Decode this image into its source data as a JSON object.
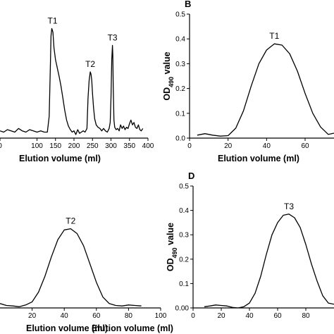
{
  "chart_data": [
    {
      "panel": "",
      "type": "line",
      "xlabel": "Elution volume (ml)",
      "ylabel": "",
      "xlim": [
        0,
        400
      ],
      "ylim": [
        -0.03,
        1.0
      ],
      "xticks": [
        0,
        100,
        150,
        200,
        250,
        300,
        350,
        400
      ],
      "xtick_labels": [
        "0",
        "100",
        "150",
        "200",
        "250",
        "300",
        "350",
        "400"
      ],
      "yticks": [],
      "series": [
        {
          "name": "",
          "x": [
            0,
            10,
            20,
            30,
            40,
            50,
            60,
            70,
            80,
            90,
            100,
            110,
            120,
            128,
            133,
            136,
            138,
            140,
            143,
            146,
            150,
            155,
            160,
            165,
            170,
            175,
            180,
            185,
            190,
            195,
            200,
            205,
            210,
            215,
            220,
            225,
            230,
            235,
            238,
            241,
            244,
            246,
            248,
            250,
            253,
            256,
            260,
            265,
            270,
            275,
            280,
            285,
            290,
            295,
            298,
            300,
            302,
            304,
            305,
            306,
            308,
            310,
            314,
            318,
            322,
            326,
            330,
            334,
            338,
            342,
            346,
            350,
            354,
            358,
            362,
            366,
            370,
            374,
            378,
            382,
            386
          ],
          "y": [
            0.03,
            0.02,
            0.04,
            0.03,
            0.02,
            0.05,
            0.03,
            0.02,
            0.04,
            0.03,
            0.02,
            0.03,
            0.02,
            0.02,
            0.15,
            0.55,
            0.82,
            0.88,
            0.85,
            0.72,
            0.62,
            0.55,
            0.48,
            0.4,
            0.3,
            0.2,
            0.12,
            0.07,
            0.04,
            0.02,
            0.03,
            0.0,
            0.04,
            0.01,
            0.02,
            0.03,
            0.02,
            0.05,
            0.3,
            0.45,
            0.52,
            0.5,
            0.45,
            0.34,
            0.22,
            0.13,
            0.08,
            0.06,
            0.05,
            0.03,
            0.05,
            0.03,
            0.02,
            0.05,
            0.1,
            0.3,
            0.62,
            0.74,
            0.66,
            0.4,
            0.12,
            0.06,
            0.04,
            0.05,
            0.03,
            0.08,
            0.05,
            0.07,
            0.04,
            0.06,
            0.05,
            0.09,
            0.12,
            0.08,
            0.1,
            0.06,
            0.05,
            0.08,
            0.04,
            0.03,
            0.05
          ]
        }
      ],
      "annotations": [
        {
          "text": "T1",
          "x": 142,
          "y": 0.88
        },
        {
          "text": "T2",
          "x": 244,
          "y": 0.52
        },
        {
          "text": "T3",
          "x": 304,
          "y": 0.74
        }
      ]
    },
    {
      "panel": "B",
      "type": "line",
      "xlabel": "Elution volume (ml)",
      "ylabel": "OD490 value",
      "xlim": [
        0,
        75
      ],
      "ylim": [
        0,
        0.5
      ],
      "xticks": [
        0,
        20,
        40,
        60
      ],
      "xtick_labels": [
        "0",
        "20",
        "40",
        "60"
      ],
      "yticks": [
        0.0,
        0.1,
        0.2,
        0.3,
        0.4,
        0.5
      ],
      "ytick_labels": [
        "0.0",
        "0.1",
        "0.2",
        "0.3",
        "0.4",
        "0.5"
      ],
      "series": [
        {
          "name": "",
          "x": [
            4,
            8,
            12,
            16,
            20,
            24,
            28,
            32,
            36,
            40,
            44,
            48,
            52,
            56,
            60,
            64,
            68,
            72,
            75
          ],
          "y": [
            0.012,
            0.018,
            0.012,
            0.008,
            0.01,
            0.04,
            0.11,
            0.21,
            0.3,
            0.355,
            0.38,
            0.375,
            0.34,
            0.27,
            0.18,
            0.1,
            0.045,
            0.015,
            0.02
          ]
        }
      ],
      "annotations": [
        {
          "text": "T1",
          "x": 44,
          "y": 0.38
        }
      ]
    },
    {
      "panel": "",
      "type": "line",
      "xlabel": "Elution volume (ml)",
      "ylabel": "",
      "xlim": [
        0,
        100
      ],
      "ylim": [
        0,
        0.5
      ],
      "xticks": [
        20,
        40,
        60,
        80,
        100
      ],
      "xtick_labels": [
        "20",
        "40",
        "60",
        "80",
        "100"
      ],
      "yticks": [],
      "series": [
        {
          "name": "",
          "x": [
            0,
            4,
            8,
            12,
            16,
            20,
            24,
            28,
            32,
            36,
            40,
            44,
            48,
            52,
            56,
            60,
            64,
            68,
            72,
            76,
            80,
            84,
            88
          ],
          "y": [
            0.018,
            0.01,
            0.008,
            0.005,
            0.012,
            0.025,
            0.065,
            0.13,
            0.21,
            0.28,
            0.32,
            0.325,
            0.305,
            0.255,
            0.18,
            0.105,
            0.045,
            0.018,
            0.01,
            0.008,
            0.012,
            0.01,
            0.008
          ]
        }
      ],
      "annotations": [
        {
          "text": "T2",
          "x": 44,
          "y": 0.325
        }
      ]
    },
    {
      "panel": "D",
      "type": "line",
      "xlabel": "Elution volume (ml)",
      "ylabel": "OD490 value",
      "xlim": [
        0,
        100
      ],
      "ylim": [
        0,
        0.5
      ],
      "xticks": [
        0,
        20,
        40,
        60,
        80
      ],
      "xtick_labels": [
        "0",
        "20",
        "40",
        "60",
        "80"
      ],
      "yticks": [
        0.0,
        0.1,
        0.2,
        0.3,
        0.4,
        0.5
      ],
      "ytick_labels": [
        "0.00",
        "0.1",
        "0.2",
        "0.3",
        "0.4",
        "0.5"
      ],
      "series": [
        {
          "name": "",
          "x": [
            8,
            12,
            16,
            20,
            24,
            28,
            32,
            36,
            40,
            44,
            48,
            52,
            56,
            60,
            64,
            68,
            72,
            76,
            80,
            84,
            88,
            92,
            96,
            100
          ],
          "y": [
            0.005,
            0.008,
            0.012,
            0.01,
            0.008,
            0.002,
            0.0,
            0.005,
            0.02,
            0.06,
            0.13,
            0.22,
            0.3,
            0.35,
            0.38,
            0.385,
            0.37,
            0.33,
            0.26,
            0.18,
            0.11,
            0.05,
            0.02,
            0.015
          ]
        }
      ],
      "annotations": [
        {
          "text": "T3",
          "x": 68,
          "y": 0.385
        }
      ]
    }
  ]
}
